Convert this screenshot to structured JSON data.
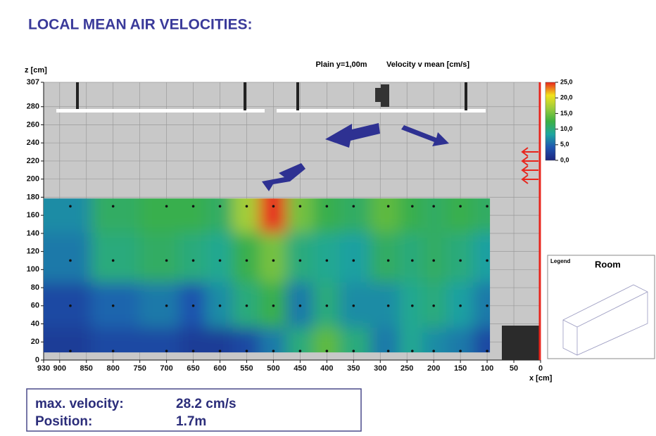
{
  "chart_data": {
    "type": "contour",
    "title": "LOCAL MEAN AIR VELOCITIES:",
    "subtitle": "Plain y=1,00m",
    "value_label": "Velocity v mean [cm/s]",
    "xlabel": "x [cm]",
    "ylabel": "z [cm]",
    "xlim": [
      930,
      0
    ],
    "ylim": [
      0,
      307
    ],
    "xticks": [
      930,
      900,
      850,
      800,
      750,
      700,
      650,
      600,
      550,
      500,
      450,
      400,
      350,
      300,
      250,
      200,
      150,
      100,
      50,
      0
    ],
    "yticks": [
      0,
      20,
      40,
      60,
      80,
      100,
      120,
      140,
      160,
      180,
      200,
      220,
      240,
      260,
      280,
      307
    ],
    "grid": true,
    "x": [
      880,
      800,
      700,
      650,
      600,
      550,
      500,
      450,
      400,
      350,
      285,
      240,
      200,
      150,
      100
    ],
    "z": [
      170,
      110,
      60,
      10
    ],
    "values": [
      [
        7,
        11,
        12,
        12,
        11,
        17,
        28.2,
        15,
        12,
        11,
        14,
        12,
        11,
        12,
        11
      ],
      [
        6,
        10,
        11,
        10,
        9,
        12,
        15,
        10,
        9,
        8,
        11,
        10,
        11,
        10,
        8
      ],
      [
        3,
        5,
        6,
        4,
        7,
        10,
        12,
        6,
        10,
        7,
        7,
        9,
        10,
        8,
        6
      ],
      [
        2,
        3,
        3,
        2,
        2,
        3,
        6,
        10,
        14,
        10,
        6,
        9,
        7,
        6,
        3
      ]
    ],
    "zlim": [
      0,
      25
    ],
    "zticks": [
      {
        "value": 25,
        "label": "25,0"
      },
      {
        "value": 20,
        "label": "20,0"
      },
      {
        "value": 15,
        "label": "15,0"
      },
      {
        "value": 10,
        "label": "10,0"
      },
      {
        "value": 5,
        "label": "5,0"
      },
      {
        "value": 0,
        "label": "0,0"
      }
    ],
    "colors": [
      "#1d2580",
      "#1f55b0",
      "#1ea6a0",
      "#3cb043",
      "#9ccc3c",
      "#f2e21b",
      "#e8251c"
    ]
  },
  "summary": {
    "max_velocity_label": "max. velocity:",
    "max_velocity": "28.2 cm/s",
    "position_label": "Position:",
    "position": "1.7m"
  },
  "legend_box": {
    "label": "Legend",
    "title": "Room"
  }
}
